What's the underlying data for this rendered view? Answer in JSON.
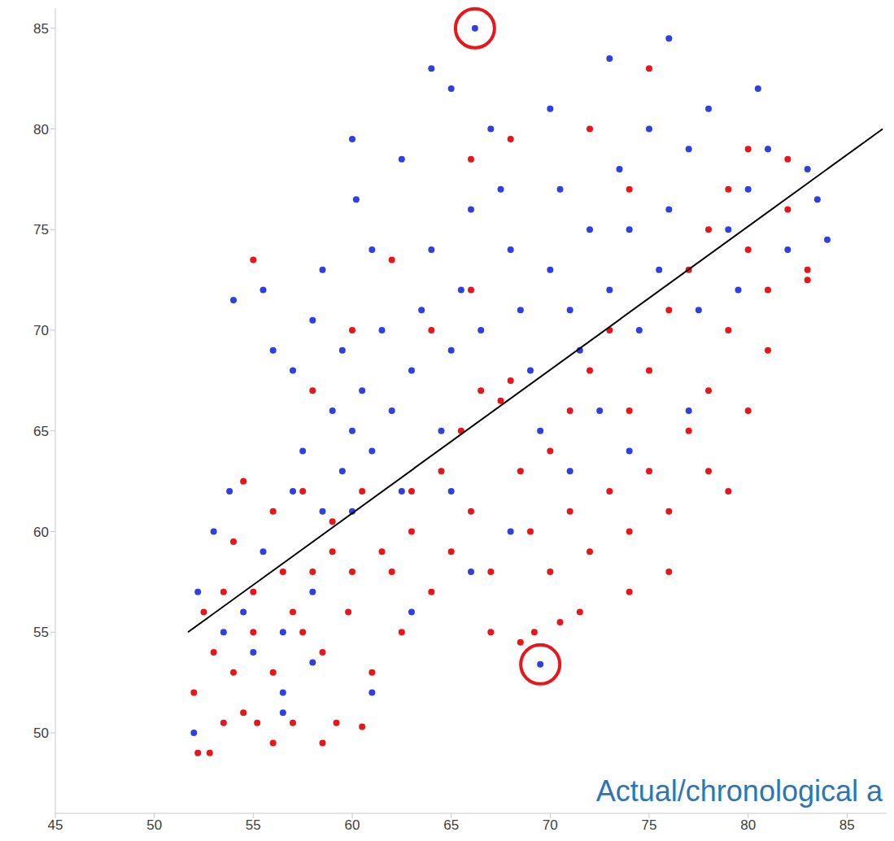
{
  "chart_data": {
    "type": "scatter",
    "xlabel": "Actual/chronological a",
    "xlim": [
      45,
      87
    ],
    "ylim": [
      46,
      86
    ],
    "xticks": [
      45,
      50,
      55,
      60,
      65,
      70,
      75,
      80,
      85
    ],
    "yticks": [
      50,
      55,
      60,
      65,
      70,
      75,
      80,
      85
    ],
    "grid": false,
    "circled": [
      {
        "x": 66.2,
        "y": 85
      },
      {
        "x": 69.5,
        "y": 53.4
      }
    ],
    "series": [
      {
        "type": "scatter",
        "color": "#e8161b",
        "marker": "circle",
        "x": [
          52.2,
          52.8,
          53.5,
          54.5,
          55.2,
          56,
          57,
          58.5,
          59.2,
          60.5,
          52,
          53,
          54,
          55,
          56,
          57.5,
          58.5,
          59.8,
          61,
          62.5,
          52.5,
          53.5,
          55,
          56.5,
          57,
          58,
          59,
          60,
          61.5,
          63,
          54,
          56,
          57.5,
          59,
          60.5,
          62,
          64,
          65,
          66,
          67,
          63,
          64.5,
          65.5,
          66.5,
          67.5,
          68,
          68.5,
          69,
          70,
          71,
          67,
          68.5,
          69.2,
          70.5,
          71.5,
          72,
          73,
          74,
          75,
          76,
          70,
          71,
          72,
          73,
          74,
          75,
          76,
          77,
          78,
          79,
          77,
          78,
          79,
          80,
          81,
          82,
          83,
          80,
          82,
          78,
          55,
          60,
          62,
          66,
          68,
          72,
          75,
          74,
          66,
          64,
          58,
          54.5,
          80,
          83,
          76,
          74,
          79,
          81
        ],
        "values": [
          49,
          49,
          50.5,
          51,
          50.5,
          49.5,
          50.5,
          49.5,
          50.5,
          50.3,
          52,
          54,
          53,
          55,
          53,
          55,
          54,
          56,
          53,
          55,
          56,
          57,
          57,
          58,
          56,
          58,
          59,
          58,
          59,
          60,
          59.5,
          61,
          62,
          60.5,
          62,
          58,
          57,
          59,
          61,
          58,
          62,
          63,
          65,
          67,
          66.5,
          67.5,
          63,
          60,
          58,
          61,
          55,
          54.5,
          55,
          55.5,
          56,
          59,
          62,
          60,
          63,
          61,
          64,
          66,
          68,
          70,
          66,
          68,
          71,
          65,
          67,
          70,
          73,
          75,
          77,
          74,
          72,
          76,
          73,
          79,
          78.5,
          63,
          73.5,
          70,
          73.5,
          78.5,
          79.5,
          80,
          83,
          77,
          72,
          70,
          67,
          62.5,
          66,
          72.5,
          58,
          57,
          62,
          69
        ]
      },
      {
        "type": "scatter",
        "color": "#2f3fe0",
        "marker": "circle",
        "x": [
          52.2,
          53,
          53.8,
          54.5,
          55,
          55.5,
          56.5,
          57,
          57.5,
          58,
          52,
          53.5,
          56.5,
          58.5,
          59,
          59.5,
          60,
          60.5,
          61,
          61.5,
          54,
          55.5,
          56,
          57,
          58,
          58.5,
          59.5,
          60,
          60.2,
          61,
          62,
          62.5,
          63,
          63.5,
          64,
          64.5,
          65,
          65.5,
          66,
          66.5,
          64,
          65,
          66.2,
          67,
          67.5,
          68,
          68.5,
          69,
          69.5,
          70,
          70.5,
          71,
          71.5,
          72,
          72.5,
          73,
          73.5,
          74,
          74.5,
          75,
          75.5,
          76,
          77,
          77.5,
          78,
          79,
          79.5,
          80,
          81,
          82,
          83,
          84,
          83.5,
          80.5,
          76,
          73,
          70,
          68,
          69.5,
          66,
          63,
          61,
          65,
          71,
          74,
          77,
          56.5,
          58,
          62.5,
          60
        ],
        "values": [
          57,
          60,
          62,
          56,
          54,
          59,
          55,
          62,
          64,
          57,
          50,
          55,
          52,
          61,
          66,
          63,
          61,
          67,
          64,
          70,
          71.5,
          72,
          69,
          68,
          70.5,
          73,
          69,
          79.5,
          76.5,
          74,
          66,
          62,
          68,
          71,
          74,
          65,
          69,
          72,
          76,
          70,
          83,
          82,
          85,
          80,
          77,
          74,
          71,
          68,
          65,
          73,
          77,
          71,
          69,
          75,
          66,
          72,
          78,
          75,
          70,
          80,
          73,
          76,
          79,
          71,
          81,
          75,
          72,
          77,
          79,
          74,
          78,
          74.5,
          76.5,
          82,
          84.5,
          83.5,
          81,
          60,
          53.4,
          58,
          56,
          52,
          62,
          63,
          64,
          66,
          51,
          53.5,
          78.5,
          65
        ]
      },
      {
        "type": "line",
        "color": "#000000",
        "x": [
          51.7,
          86.8
        ],
        "values": [
          55,
          80
        ]
      }
    ]
  }
}
